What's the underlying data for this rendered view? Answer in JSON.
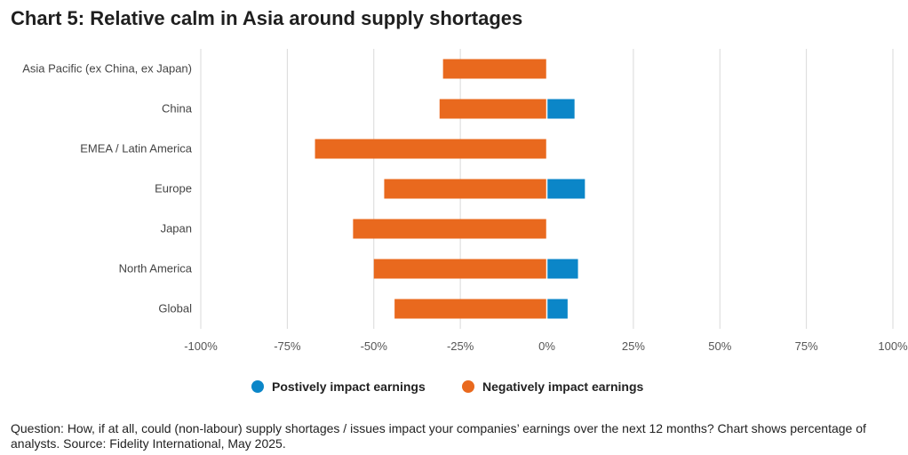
{
  "title": "Chart 5: Relative calm in Asia around supply shortages",
  "footnote": "Question: How, if at all, could (non-labour) supply shortages / issues impact your companies’ earnings over the next 12 months? Chart shows percentage of analysts. Source: Fidelity International, May 2025.",
  "colors": {
    "positive": "#0b86c8",
    "negative": "#e9691e",
    "grid": "#d9d9d9"
  },
  "chart_data": {
    "type": "bar",
    "orientation": "horizontal",
    "categories": [
      "Asia Pacific (ex China, ex Japan)",
      "China",
      "EMEA / Latin America",
      "Europe",
      "Japan",
      "North America",
      "Global"
    ],
    "series": [
      {
        "name": "Postively impact earnings",
        "values": [
          0,
          8,
          0,
          11,
          0,
          9,
          6
        ]
      },
      {
        "name": "Negatively impact earnings",
        "values": [
          -30,
          -31,
          -67,
          -47,
          -56,
          -50,
          -44
        ]
      }
    ],
    "xlim": [
      -100,
      100
    ],
    "xticks": [
      -100,
      -75,
      -50,
      -25,
      0,
      25,
      50,
      75,
      100
    ],
    "xtick_labels": [
      "-100%",
      "-75%",
      "-50%",
      "-25%",
      "0%",
      "25%",
      "50%",
      "75%",
      "100%"
    ],
    "grid": true,
    "legend_position": "bottom"
  }
}
